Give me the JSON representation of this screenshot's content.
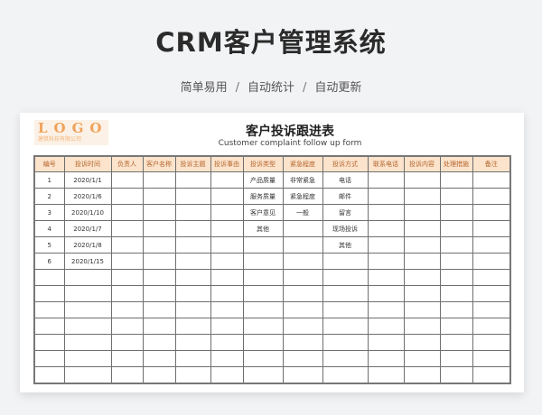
{
  "header": {
    "title": "CRM客户管理系统",
    "subtitle_items": [
      "简单易用",
      "自动统计",
      "自动更新"
    ],
    "separator": "/"
  },
  "sheet": {
    "logo_text": "LOGO",
    "logo_sub": "建筑科技有限公司",
    "title": "客户投诉跟进表",
    "subtitle": "Customer complaint follow up form",
    "columns": [
      "编号",
      "投诉时间",
      "负责人",
      "客户名称",
      "投诉主题",
      "投诉事由",
      "投诉类型",
      "紧急程度",
      "投诉方式",
      "联系电话",
      "投诉内容",
      "处理措施",
      "备注"
    ],
    "rows": [
      [
        "1",
        "2020/1/1",
        "",
        "",
        "",
        "",
        "产品质量",
        "非常紧急",
        "电话",
        "",
        "",
        "",
        ""
      ],
      [
        "2",
        "2020/1/6",
        "",
        "",
        "",
        "",
        "服务质量",
        "紧急程度",
        "邮件",
        "",
        "",
        "",
        ""
      ],
      [
        "3",
        "2020/1/10",
        "",
        "",
        "",
        "",
        "客户意见",
        "一般",
        "留言",
        "",
        "",
        "",
        ""
      ],
      [
        "4",
        "2020/1/7",
        "",
        "",
        "",
        "",
        "其他",
        "",
        "现场投诉",
        "",
        "",
        "",
        ""
      ],
      [
        "5",
        "2020/1/8",
        "",
        "",
        "",
        "",
        "",
        "",
        "其他",
        "",
        "",
        "",
        ""
      ],
      [
        "6",
        "2020/1/15",
        "",
        "",
        "",
        "",
        "",
        "",
        "",
        "",
        "",
        "",
        ""
      ]
    ],
    "empty_rows": 7
  },
  "colors": {
    "header_fill": "#fbe3cc",
    "header_text": "#b5652a",
    "logo": "#f0a25a"
  }
}
